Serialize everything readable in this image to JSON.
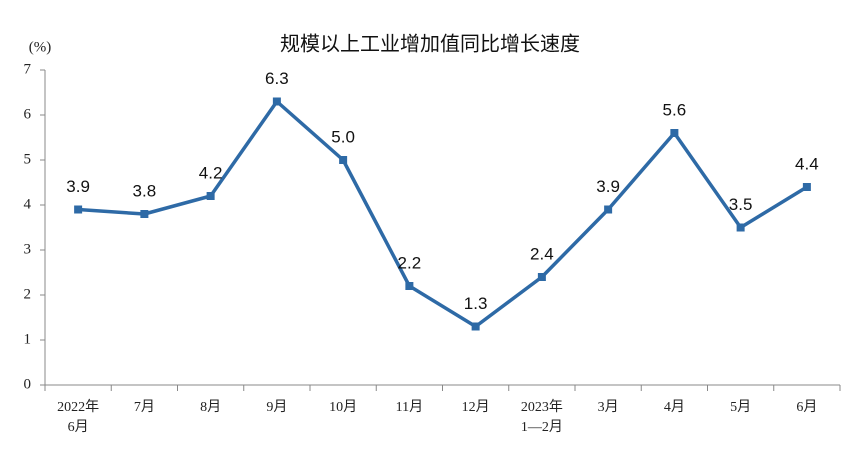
{
  "chart_data": {
    "type": "line",
    "title": "规模以上工业增加值同比增长速度",
    "y_label": "(%)",
    "categories": [
      "2022年\n6月",
      "7月",
      "8月",
      "9月",
      "10月",
      "11月",
      "12月",
      "2023年\n1—2月",
      "3月",
      "4月",
      "5月",
      "6月"
    ],
    "values": [
      3.9,
      3.8,
      4.2,
      6.3,
      5.0,
      2.2,
      1.3,
      2.4,
      3.9,
      5.6,
      3.5,
      4.4
    ],
    "value_labels": [
      "3.9",
      "3.8",
      "4.2",
      "6.3",
      "5.0",
      "2.2",
      "1.3",
      "2.4",
      "3.9",
      "5.6",
      "3.5",
      "4.4"
    ],
    "color": "#2e6aa6",
    "ylim": [
      0,
      7
    ],
    "yticks": [
      0,
      1,
      2,
      3,
      4,
      5,
      6,
      7
    ]
  }
}
